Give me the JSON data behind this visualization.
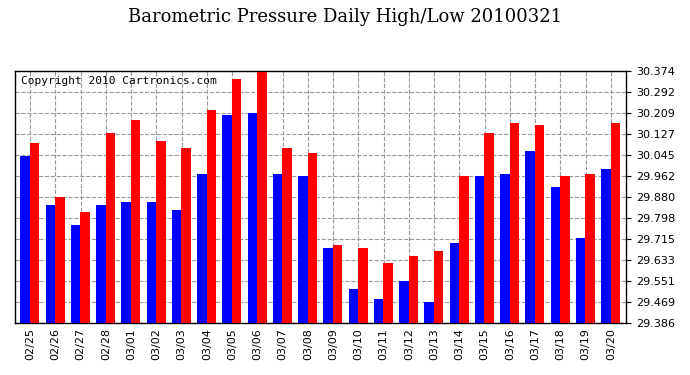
{
  "title": "Barometric Pressure Daily High/Low 20100321",
  "copyright": "Copyright 2010 Cartronics.com",
  "dates": [
    "02/25",
    "02/26",
    "02/27",
    "02/28",
    "03/01",
    "03/02",
    "03/03",
    "03/04",
    "03/05",
    "03/06",
    "03/07",
    "03/08",
    "03/09",
    "03/10",
    "03/11",
    "03/12",
    "03/13",
    "03/14",
    "03/15",
    "03/16",
    "03/17",
    "03/18",
    "03/19",
    "03/20"
  ],
  "highs": [
    30.09,
    29.88,
    29.82,
    30.13,
    30.18,
    30.1,
    30.07,
    30.22,
    30.34,
    30.37,
    30.07,
    30.05,
    29.69,
    29.68,
    29.62,
    29.65,
    29.67,
    29.96,
    30.13,
    30.17,
    30.16,
    29.96,
    29.97,
    30.17
  ],
  "lows": [
    30.04,
    29.85,
    29.77,
    29.85,
    29.86,
    29.86,
    29.83,
    29.97,
    30.2,
    30.21,
    29.97,
    29.96,
    29.68,
    29.52,
    29.48,
    29.55,
    29.47,
    29.7,
    29.96,
    29.97,
    30.06,
    29.92,
    29.72,
    29.99
  ],
  "high_color": "#ff0000",
  "low_color": "#0000ff",
  "bg_color": "#ffffff",
  "plot_bg_color": "#ffffff",
  "grid_color": "#999999",
  "ymin": 29.386,
  "ymax": 30.374,
  "yticks": [
    29.386,
    29.469,
    29.551,
    29.633,
    29.715,
    29.798,
    29.88,
    29.962,
    30.045,
    30.127,
    30.209,
    30.292,
    30.374
  ],
  "title_fontsize": 13,
  "copyright_fontsize": 8,
  "tick_fontsize": 8
}
